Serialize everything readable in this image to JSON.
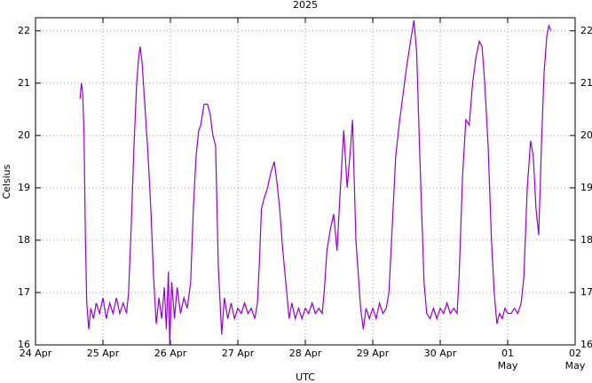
{
  "chart_data": {
    "type": "line",
    "title": "2025",
    "xlabel": "UTC",
    "ylabel": "Celsius",
    "xlim": [
      0,
      8
    ],
    "ylim": [
      16,
      22.25
    ],
    "xticks": [
      {
        "value": 0,
        "label": "24 Apr"
      },
      {
        "value": 1,
        "label": "25 Apr"
      },
      {
        "value": 2,
        "label": "26 Apr"
      },
      {
        "value": 3,
        "label": "27 Apr"
      },
      {
        "value": 4,
        "label": "28 Apr"
      },
      {
        "value": 5,
        "label": "29 Apr"
      },
      {
        "value": 6,
        "label": "30 Apr"
      },
      {
        "value": 7,
        "label": "01 May"
      },
      {
        "value": 8,
        "label": "02 May"
      }
    ],
    "yticks": [
      16,
      17,
      18,
      19,
      20,
      21,
      22
    ],
    "grid": true,
    "x": [
      0.66,
      0.68,
      0.7,
      0.72,
      0.74,
      0.76,
      0.79,
      0.82,
      0.86,
      0.9,
      0.95,
      1.0,
      1.05,
      1.1,
      1.15,
      1.2,
      1.25,
      1.3,
      1.35,
      1.38,
      1.42,
      1.46,
      1.5,
      1.53,
      1.55,
      1.58,
      1.62,
      1.67,
      1.71,
      1.75,
      1.79,
      1.83,
      1.87,
      1.91,
      1.94,
      1.97,
      1.99,
      2.02,
      2.06,
      2.1,
      2.15,
      2.2,
      2.25,
      2.3,
      2.34,
      2.38,
      2.42,
      2.45,
      2.5,
      2.55,
      2.59,
      2.63,
      2.67,
      2.71,
      2.76,
      2.8,
      2.85,
      2.9,
      2.95,
      3.0,
      3.05,
      3.1,
      3.15,
      3.2,
      3.25,
      3.29,
      3.32,
      3.35,
      3.39,
      3.44,
      3.49,
      3.54,
      3.58,
      3.62,
      3.66,
      3.71,
      3.76,
      3.8,
      3.85,
      3.9,
      3.95,
      4.0,
      4.05,
      4.1,
      4.15,
      4.2,
      4.25,
      4.28,
      4.32,
      4.37,
      4.42,
      4.47,
      4.52,
      4.57,
      4.62,
      4.66,
      4.7,
      4.75,
      4.82,
      4.86,
      4.9,
      4.95,
      5.0,
      5.05,
      5.1,
      5.15,
      5.2,
      5.24,
      5.29,
      5.34,
      5.39,
      5.45,
      5.5,
      5.56,
      5.61,
      5.65,
      5.7,
      5.76,
      5.8,
      5.85,
      5.9,
      5.95,
      6.0,
      6.05,
      6.1,
      6.15,
      6.2,
      6.25,
      6.28,
      6.33,
      6.38,
      6.43,
      6.48,
      6.53,
      6.58,
      6.62,
      6.66,
      6.71,
      6.76,
      6.8,
      6.84,
      6.88,
      6.92,
      6.96,
      7.0,
      7.05,
      7.1,
      7.15,
      7.2,
      7.24,
      7.29,
      7.34,
      7.38,
      7.42,
      7.46,
      7.5,
      7.54,
      7.58,
      7.61,
      7.64
    ],
    "series": [
      {
        "color": "#9400d3",
        "values": [
          20.7,
          21.0,
          20.8,
          20.0,
          18.0,
          16.8,
          16.3,
          16.7,
          16.5,
          16.8,
          16.6,
          16.9,
          16.5,
          16.8,
          16.6,
          16.9,
          16.6,
          16.8,
          16.6,
          17.0,
          18.3,
          19.8,
          21.0,
          21.5,
          21.7,
          21.4,
          20.6,
          19.6,
          18.6,
          17.3,
          16.4,
          16.9,
          16.5,
          17.1,
          16.3,
          17.4,
          16.0,
          17.2,
          16.5,
          17.1,
          16.6,
          16.9,
          16.7,
          17.2,
          18.6,
          19.6,
          20.1,
          20.2,
          20.6,
          20.6,
          20.4,
          20.0,
          19.8,
          17.5,
          16.2,
          16.9,
          16.5,
          16.8,
          16.5,
          16.7,
          16.6,
          16.8,
          16.6,
          16.7,
          16.5,
          16.8,
          17.6,
          18.6,
          18.8,
          19.0,
          19.3,
          19.5,
          19.1,
          18.6,
          17.9,
          17.2,
          16.5,
          16.8,
          16.5,
          16.7,
          16.5,
          16.7,
          16.6,
          16.8,
          16.6,
          16.7,
          16.6,
          17.0,
          17.8,
          18.2,
          18.5,
          17.8,
          19.0,
          20.1,
          19.0,
          19.6,
          20.3,
          18.0,
          16.7,
          16.3,
          16.7,
          16.5,
          16.7,
          16.5,
          16.8,
          16.6,
          16.7,
          17.0,
          18.3,
          19.6,
          20.2,
          20.8,
          21.3,
          21.8,
          22.2,
          21.6,
          19.5,
          17.2,
          16.6,
          16.5,
          16.7,
          16.5,
          16.7,
          16.6,
          16.8,
          16.6,
          16.7,
          16.6,
          17.3,
          19.2,
          20.3,
          20.2,
          21.0,
          21.5,
          21.8,
          21.7,
          21.0,
          19.8,
          18.0,
          17.0,
          16.4,
          16.6,
          16.5,
          16.7,
          16.6,
          16.6,
          16.7,
          16.6,
          16.8,
          17.3,
          19.0,
          19.9,
          19.6,
          18.6,
          18.1,
          19.8,
          21.2,
          21.9,
          22.1,
          22.0
        ]
      }
    ]
  }
}
